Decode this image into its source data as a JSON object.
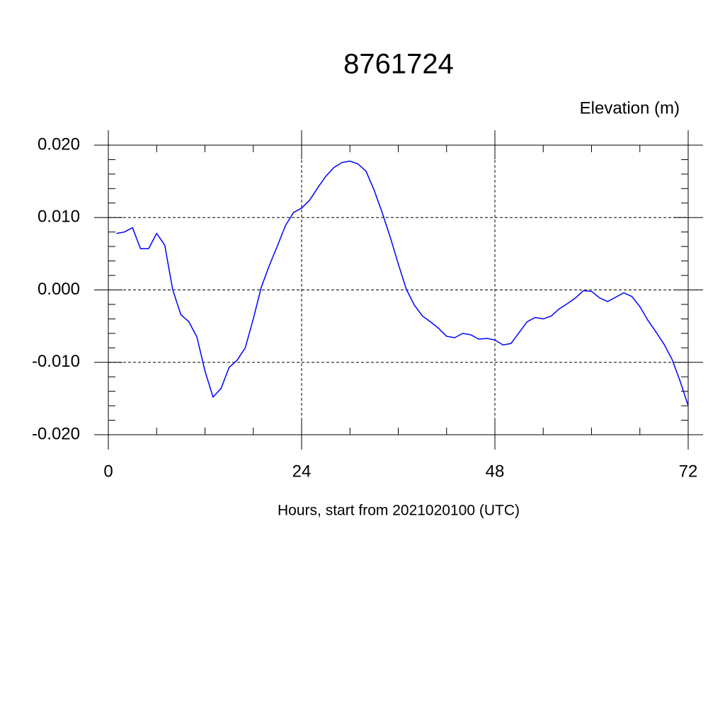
{
  "chart_data": {
    "type": "line",
    "title": "8761724",
    "y_label": "Elevation (m)",
    "x_label": "Hours, start from 2021020100 (UTC)",
    "x": [
      1,
      2,
      3,
      4,
      5,
      6,
      7,
      8,
      9,
      10,
      11,
      12,
      13,
      14,
      15,
      16,
      17,
      18,
      19,
      20,
      21,
      22,
      23,
      24,
      25,
      26,
      27,
      28,
      29,
      30,
      31,
      32,
      33,
      34,
      35,
      36,
      37,
      38,
      39,
      40,
      41,
      42,
      43,
      44,
      45,
      46,
      47,
      48,
      49,
      50,
      51,
      52,
      53,
      54,
      55,
      56,
      57,
      58,
      59,
      60,
      61,
      62,
      63,
      64,
      65,
      66,
      67,
      68,
      69,
      70,
      71,
      72
    ],
    "series": [
      {
        "name": "Elevation",
        "color": "#0000ff",
        "values": [
          0.0078,
          0.008,
          0.0086,
          0.0057,
          0.0057,
          0.0078,
          0.0062,
          0.0,
          -0.0034,
          -0.0044,
          -0.0065,
          -0.0112,
          -0.0148,
          -0.0136,
          -0.0107,
          -0.0097,
          -0.008,
          -0.004,
          0.0004,
          0.0034,
          0.0061,
          0.0089,
          0.0107,
          0.0113,
          0.0124,
          0.0141,
          0.0157,
          0.0169,
          0.0176,
          0.0178,
          0.0174,
          0.0164,
          0.0138,
          0.0107,
          0.0073,
          0.0036,
          0.0001,
          -0.0021,
          -0.0036,
          -0.0044,
          -0.0053,
          -0.0064,
          -0.0066,
          -0.006,
          -0.0062,
          -0.0068,
          -0.0067,
          -0.0069,
          -0.0076,
          -0.0074,
          -0.0059,
          -0.0044,
          -0.0038,
          -0.004,
          -0.0036,
          -0.0026,
          -0.0019,
          -0.0011,
          -0.0001,
          -0.0002,
          -0.0011,
          -0.0016,
          -0.001,
          -0.0004,
          -0.0009,
          -0.0023,
          -0.0042,
          -0.0058,
          -0.0075,
          -0.0096,
          -0.0126,
          -0.016
        ]
      }
    ],
    "xlim": [
      0,
      72
    ],
    "xticks": [
      0,
      24,
      48,
      72
    ],
    "ylim": [
      -0.02,
      0.02
    ],
    "yticks": [
      {
        "value": -0.02,
        "label": "-0.020"
      },
      {
        "value": -0.01,
        "label": "-0.010"
      },
      {
        "value": 0,
        "label": "0.000"
      },
      {
        "value": 0.01,
        "label": "0.010"
      },
      {
        "value": 0.02,
        "label": "0.020"
      }
    ],
    "grid": true
  }
}
